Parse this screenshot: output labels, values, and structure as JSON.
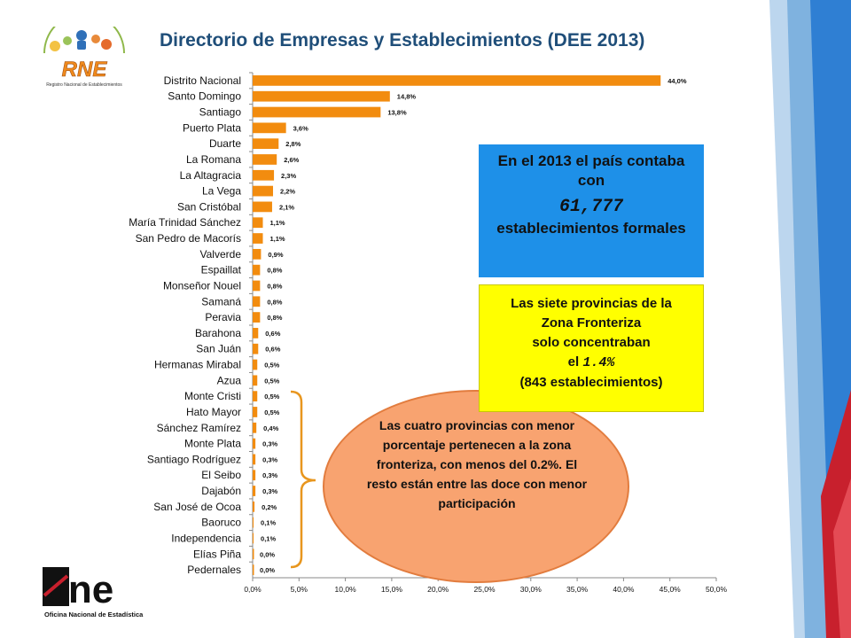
{
  "page_title": "Directorio de Empresas y Establecimientos (DEE 2013)",
  "logos": {
    "rne_main": "RNE",
    "rne_sub": "Registro Nacional de Establecimientos",
    "one_main": "one",
    "one_sub": "Oficina Nacional de Estadística"
  },
  "colors": {
    "bar": "#f28c0f",
    "title": "#1f4e79",
    "blue_box": "#1e90e8",
    "yellow_box": "#ffff00",
    "ellipse": "#f8a370",
    "bracket": "#e8961e"
  },
  "chart_data": {
    "type": "bar",
    "orientation": "horizontal",
    "categories": [
      "Distrito Nacional",
      "Santo Domingo",
      "Santiago",
      "Puerto Plata",
      "Duarte",
      "La Romana",
      "La Altagracia",
      "La Vega",
      "San Cristóbal",
      "María Trinidad Sánchez",
      "San Pedro de Macorís",
      "Valverde",
      "Espaillat",
      "Monseñor Nouel",
      "Samaná",
      "Peravia",
      "Barahona",
      "San Juán",
      "Hermanas Mirabal",
      "Azua",
      "Monte Cristi",
      "Hato Mayor",
      "Sánchez Ramírez",
      "Monte Plata",
      "Santiago Rodríguez",
      "El Seibo",
      "Dajabón",
      "San José de Ocoa",
      "Baoruco",
      "Independencia",
      "Elías Piña",
      "Pedernales"
    ],
    "values": [
      44.0,
      14.8,
      13.8,
      3.6,
      2.8,
      2.6,
      2.3,
      2.2,
      2.1,
      1.1,
      1.1,
      0.9,
      0.8,
      0.8,
      0.8,
      0.8,
      0.6,
      0.6,
      0.5,
      0.5,
      0.5,
      0.5,
      0.4,
      0.3,
      0.3,
      0.3,
      0.3,
      0.2,
      0.1,
      0.1,
      0.0,
      0.0
    ],
    "labels": [
      "44,0%",
      "14,8%",
      "13,8%",
      "3,6%",
      "2,8%",
      "2,6%",
      "2,3%",
      "2,2%",
      "2,1%",
      "1,1%",
      "1,1%",
      "0,9%",
      "0,8%",
      "0,8%",
      "0,8%",
      "0,8%",
      "0,6%",
      "0,6%",
      "0,5%",
      "0,5%",
      "0,5%",
      "0,5%",
      "0,4%",
      "0,3%",
      "0,3%",
      "0,3%",
      "0,3%",
      "0,2%",
      "0,1%",
      "0,1%",
      "0,0%",
      "0,0%"
    ],
    "x_ticks": [
      "0,0%",
      "5,0%",
      "10,0%",
      "15,0%",
      "20,0%",
      "25,0%",
      "30,0%",
      "35,0%",
      "40,0%",
      "45,0%",
      "50,0%"
    ],
    "xlim": [
      0,
      50
    ],
    "grid": false,
    "legend": "none"
  },
  "blue_box": {
    "line1": "En el 2013 el país contaba con",
    "number": "61,777",
    "line2": "establecimientos formales"
  },
  "yellow_box": {
    "line1": "Las siete provincias de la",
    "line2": "Zona Fronteriza",
    "line3": "solo concentraban",
    "line4_prefix": "el ",
    "pct": "1.4%",
    "line5": "(843 establecimientos)"
  },
  "ellipse_text": "Las cuatro provincias con menor porcentaje pertenecen a la zona fronteriza, con menos del 0.2%. El resto están entre las doce con menor participación"
}
